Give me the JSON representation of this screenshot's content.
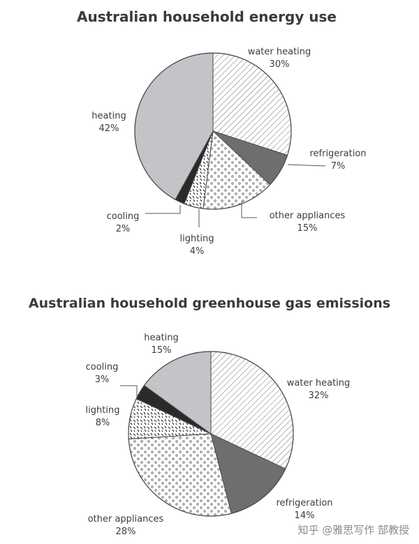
{
  "chart_data": [
    {
      "type": "pie",
      "title": "Australian household energy use",
      "slices": [
        {
          "name": "water heating",
          "label": "30%",
          "value": 30
        },
        {
          "name": "refrigeration",
          "label": "7%",
          "value": 7
        },
        {
          "name": "other appliances",
          "label": "15%",
          "value": 15
        },
        {
          "name": "lighting",
          "label": "4%",
          "value": 4
        },
        {
          "name": "cooling",
          "label": "2%",
          "value": 2
        },
        {
          "name": "heating",
          "label": "42%",
          "value": 42
        }
      ]
    },
    {
      "type": "pie",
      "title": "Australian household greenhouse gas emissions",
      "slices": [
        {
          "name": "water heating",
          "label": "32%",
          "value": 32
        },
        {
          "name": "refrigeration",
          "label": "14%",
          "value": 14
        },
        {
          "name": "other appliances",
          "label": "28%",
          "value": 28
        },
        {
          "name": "lighting",
          "label": "8%",
          "value": 8
        },
        {
          "name": "cooling",
          "label": "3%",
          "value": 3
        },
        {
          "name": "heating",
          "label": "15%",
          "value": 15
        }
      ]
    }
  ],
  "slice_styles": {
    "water heating": "diagonal-hatch",
    "refrigeration": "dark-grey",
    "other appliances": "dots",
    "lighting": "dashes",
    "cooling": "black",
    "heating": "light-grey"
  },
  "colors": {
    "heating": "#c4c4c8",
    "refrigeration": "#6e6e6e",
    "cooling": "#2a2a2a",
    "outline": "#4a4a4a"
  },
  "watermark": "知乎 @雅思写作 郜教授"
}
